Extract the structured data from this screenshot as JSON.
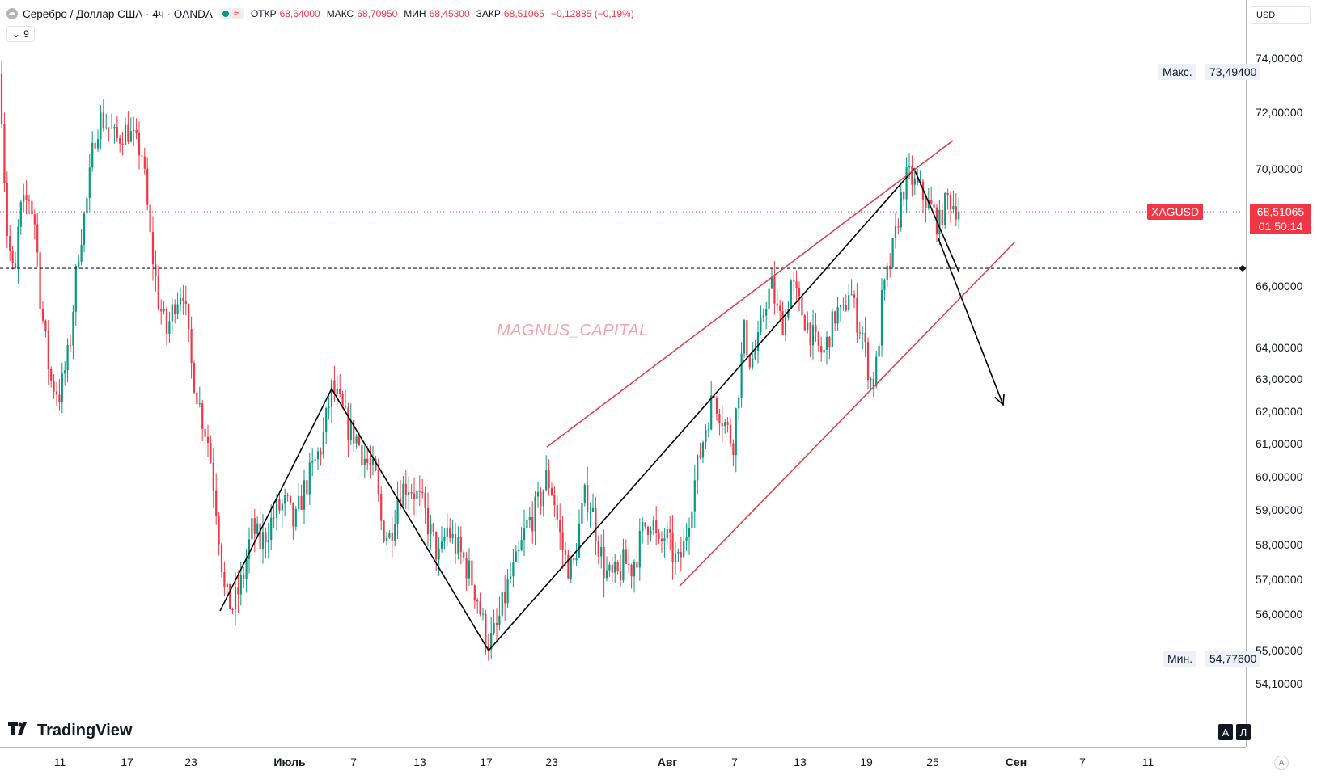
{
  "header": {
    "title": "Серебро / Доллар США · 4ч · OANDA",
    "ohlc": [
      {
        "key": "ОТКР",
        "value": "68,64000"
      },
      {
        "key": "МАКС",
        "value": "68,70950"
      },
      {
        "key": "МИН",
        "value": "68,45300"
      },
      {
        "key": "ЗАКР",
        "value": "68,51065"
      }
    ],
    "change": "−0,12885 (−0,19%)",
    "collapse_count": "9",
    "status_color": "#089981"
  },
  "currency": "USD",
  "watermark": "MAGNUS_CAPITAL",
  "branding": "TradingView",
  "axis_buttons": {
    "auto": "A",
    "log": "Л"
  },
  "corner_button": "A",
  "price_tags": {
    "max_label": "Макс.",
    "max_value": "73,49400",
    "min_label": "Мин.",
    "min_value": "54,77600",
    "symbol": "XAGUSD",
    "last_value": "68,51065",
    "countdown": "01:50:14"
  },
  "colors": {
    "up": "#089981",
    "down": "#f23645",
    "pattern_lines": "#e0424f",
    "zigzag": "#000000"
  },
  "chart_data": {
    "type": "candlestick",
    "symbol": "XAGUSD",
    "timeframe": "4h",
    "y_axis": {
      "scale": "log",
      "ticks": [
        {
          "value": 74,
          "label": "74,00000"
        },
        {
          "value": 72,
          "label": "72,00000"
        },
        {
          "value": 70,
          "label": "70,00000"
        },
        {
          "value": 66,
          "label": "66,00000"
        },
        {
          "value": 64,
          "label": "64,00000"
        },
        {
          "value": 63,
          "label": "63,00000"
        },
        {
          "value": 62,
          "label": "62,00000"
        },
        {
          "value": 61,
          "label": "61,00000"
        },
        {
          "value": 60,
          "label": "60,00000"
        },
        {
          "value": 59,
          "label": "59,00000"
        },
        {
          "value": 58,
          "label": "58,00000"
        },
        {
          "value": 57,
          "label": "57,00000"
        },
        {
          "value": 56,
          "label": "56,00000"
        },
        {
          "value": 55,
          "label": "55,00000"
        },
        {
          "value": 54.1,
          "label": "54,10000"
        }
      ]
    },
    "x_axis": {
      "ticks": [
        {
          "label": "11",
          "bold": false
        },
        {
          "label": "17",
          "bold": false
        },
        {
          "label": "23",
          "bold": false
        },
        {
          "label": "Июль",
          "bold": true
        },
        {
          "label": "7",
          "bold": false
        },
        {
          "label": "13",
          "bold": false
        },
        {
          "label": "17",
          "bold": false
        },
        {
          "label": "23",
          "bold": false
        },
        {
          "label": "Авг",
          "bold": true
        },
        {
          "label": "7",
          "bold": false
        },
        {
          "label": "13",
          "bold": false
        },
        {
          "label": "19",
          "bold": false
        },
        {
          "label": "25",
          "bold": false
        },
        {
          "label": "Сен",
          "bold": true
        },
        {
          "label": "7",
          "bold": false
        },
        {
          "label": "11",
          "bold": false
        }
      ]
    },
    "last_price": 68.51065,
    "horizontal_level": 66.6,
    "price_path": [
      [
        0,
        73.4
      ],
      [
        8,
        68.0
      ],
      [
        18,
        66.0
      ],
      [
        24,
        68.5
      ],
      [
        36,
        69.0
      ],
      [
        44,
        68.0
      ],
      [
        50,
        65.5
      ],
      [
        62,
        63.0
      ],
      [
        74,
        62.5
      ],
      [
        86,
        64.0
      ],
      [
        96,
        67.0
      ],
      [
        108,
        69.0
      ],
      [
        116,
        71.0
      ],
      [
        124,
        71.8
      ],
      [
        134,
        71.5
      ],
      [
        144,
        71.0
      ],
      [
        156,
        71.4
      ],
      [
        166,
        71.0
      ],
      [
        176,
        70.5
      ],
      [
        186,
        67.5
      ],
      [
        196,
        65.5
      ],
      [
        206,
        64.5
      ],
      [
        216,
        65.5
      ],
      [
        226,
        66.0
      ],
      [
        236,
        63.5
      ],
      [
        248,
        62.0
      ],
      [
        258,
        61.0
      ],
      [
        268,
        59.0
      ],
      [
        278,
        56.5
      ],
      [
        288,
        56.2
      ],
      [
        300,
        57.0
      ],
      [
        312,
        58.5
      ],
      [
        322,
        58.0
      ],
      [
        332,
        58.5
      ],
      [
        342,
        59.0
      ],
      [
        354,
        59.2
      ],
      [
        364,
        58.5
      ],
      [
        374,
        59.5
      ],
      [
        386,
        60.2
      ],
      [
        398,
        61.0
      ],
      [
        410,
        62.7
      ],
      [
        420,
        62.2
      ],
      [
        430,
        61.5
      ],
      [
        440,
        61.2
      ],
      [
        452,
        60.5
      ],
      [
        464,
        60.0
      ],
      [
        472,
        58.5
      ],
      [
        482,
        58.2
      ],
      [
        492,
        59.5
      ],
      [
        504,
        59.8
      ],
      [
        514,
        59.5
      ],
      [
        524,
        59.0
      ],
      [
        534,
        58.2
      ],
      [
        544,
        57.5
      ],
      [
        552,
        58.5
      ],
      [
        562,
        58.0
      ],
      [
        572,
        57.6
      ],
      [
        580,
        57.2
      ],
      [
        590,
        56.5
      ],
      [
        598,
        55.6
      ],
      [
        606,
        55.2
      ],
      [
        614,
        55.6
      ],
      [
        622,
        56.3
      ],
      [
        630,
        57.0
      ],
      [
        640,
        57.5
      ],
      [
        650,
        58.5
      ],
      [
        658,
        58.8
      ],
      [
        666,
        59.2
      ],
      [
        676,
        60.0
      ],
      [
        684,
        59.5
      ],
      [
        690,
        58.5
      ],
      [
        698,
        57.6
      ],
      [
        708,
        57.2
      ],
      [
        716,
        58.5
      ],
      [
        724,
        59.5
      ],
      [
        732,
        59.0
      ],
      [
        740,
        58.0
      ],
      [
        748,
        57.2
      ],
      [
        756,
        57.0
      ],
      [
        764,
        57.1
      ],
      [
        772,
        57.5
      ],
      [
        780,
        57.3
      ],
      [
        788,
        57.8
      ],
      [
        796,
        58.5
      ],
      [
        806,
        58.8
      ],
      [
        814,
        57.8
      ],
      [
        822,
        58.3
      ],
      [
        830,
        57.8
      ],
      [
        838,
        57.4
      ],
      [
        846,
        58.0
      ],
      [
        856,
        59.5
      ],
      [
        864,
        60.5
      ],
      [
        872,
        61.5
      ],
      [
        882,
        62.5
      ],
      [
        890,
        62.0
      ],
      [
        898,
        61.5
      ],
      [
        906,
        61.0
      ],
      [
        914,
        63.0
      ],
      [
        920,
        64.5
      ],
      [
        928,
        63.5
      ],
      [
        938,
        64.2
      ],
      [
        946,
        65.5
      ],
      [
        954,
        66.0
      ],
      [
        962,
        65.0
      ],
      [
        970,
        64.8
      ],
      [
        978,
        66.2
      ],
      [
        986,
        65.5
      ],
      [
        994,
        65.0
      ],
      [
        1002,
        64.5
      ],
      [
        1010,
        64.0
      ],
      [
        1018,
        63.8
      ],
      [
        1026,
        64.5
      ],
      [
        1034,
        65.2
      ],
      [
        1042,
        65.0
      ],
      [
        1050,
        66.0
      ],
      [
        1058,
        65.0
      ],
      [
        1066,
        64.5
      ],
      [
        1072,
        63.5
      ],
      [
        1078,
        62.8
      ],
      [
        1084,
        63.5
      ],
      [
        1090,
        65.5
      ],
      [
        1098,
        66.5
      ],
      [
        1106,
        67.5
      ],
      [
        1114,
        69.0
      ],
      [
        1122,
        69.8
      ],
      [
        1130,
        69.5
      ],
      [
        1138,
        69.2
      ],
      [
        1146,
        68.8
      ],
      [
        1154,
        68.5
      ],
      [
        1160,
        68.0
      ],
      [
        1166,
        68.6
      ],
      [
        1172,
        69.0
      ],
      [
        1178,
        68.8
      ],
      [
        1186,
        68.51
      ]
    ]
  },
  "drawings": [
    {
      "type": "zigzag",
      "color": "#000000",
      "points": [
        [
          272,
          56.1
        ],
        [
          410,
          62.7
        ],
        [
          604,
          55.0
        ],
        [
          1130,
          70.0
        ],
        [
          1185,
          66.5
        ]
      ]
    },
    {
      "type": "arrow",
      "color": "#000000",
      "from": [
        1160,
        67.6
      ],
      "to": [
        1240,
        62.2
      ]
    },
    {
      "type": "trendline",
      "color": "#e0424f",
      "points": [
        [
          676,
          60.9
        ],
        [
          1178,
          71.0
        ]
      ]
    },
    {
      "type": "trendline",
      "color": "#e0424f",
      "points": [
        [
          840,
          56.8
        ],
        [
          1255,
          67.5
        ]
      ]
    }
  ]
}
